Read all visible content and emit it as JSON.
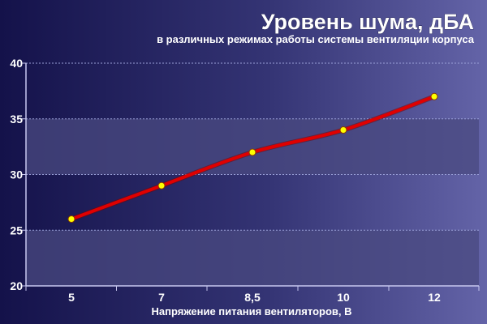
{
  "chart_data": {
    "type": "line",
    "title": "Уровень шума, дБА",
    "subtitle": "в различных режимах работы системы вентиляции корпуса",
    "xlabel": "Напряжение питания вентиляторов, В",
    "ylabel": "",
    "categories": [
      "5",
      "7",
      "8,5",
      "10",
      "12"
    ],
    "series": [
      {
        "values": [
          26,
          29,
          32,
          34,
          37
        ]
      }
    ],
    "ylim": [
      20,
      40
    ],
    "yticks": [
      20,
      25,
      30,
      35,
      40
    ],
    "grid": true,
    "legend": "none",
    "colors": {
      "line": "#e00000",
      "marker_fill": "#ffff00",
      "marker_stroke": "#8a3a00",
      "text": "#ffffff",
      "grid": "#9aa0d8",
      "band": "#4a4a80"
    }
  }
}
